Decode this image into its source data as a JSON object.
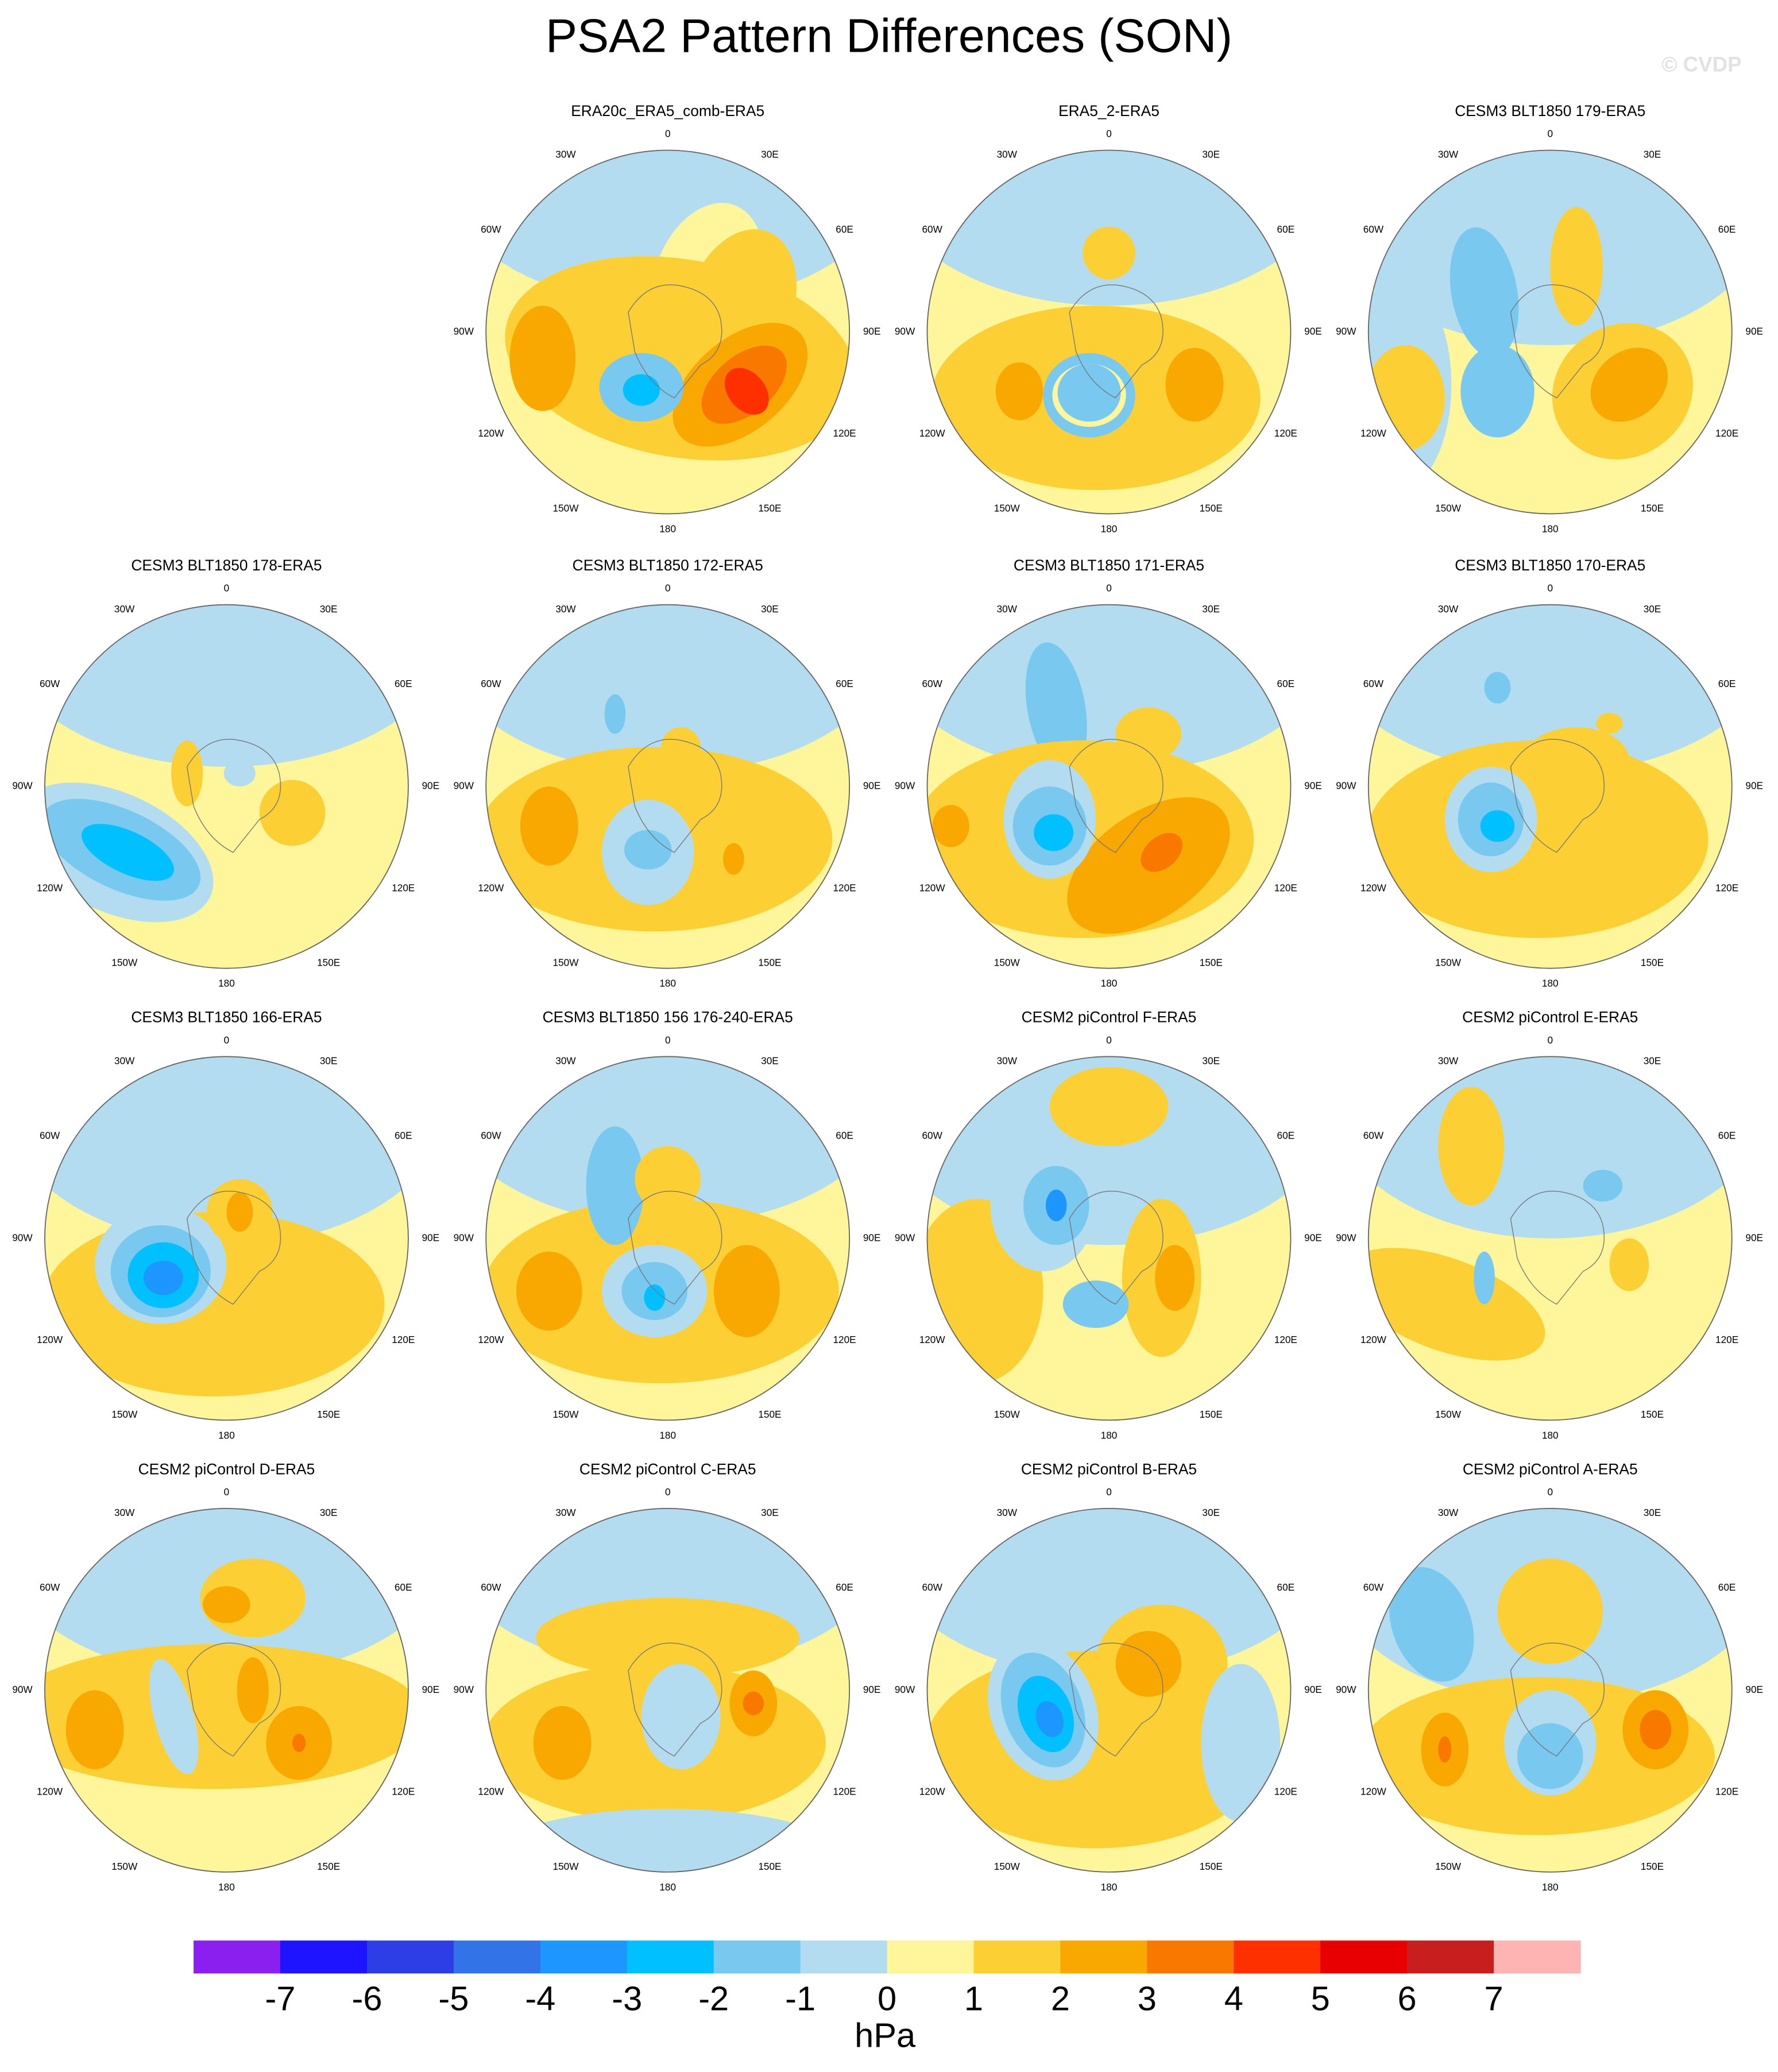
{
  "title": "PSA2 Pattern Differences (SON)",
  "watermark": "© CVDP",
  "panels": [
    {
      "title": "ERA20c_ERA5_comb-ERA5"
    },
    {
      "title": "ERA5_2-ERA5"
    },
    {
      "title": "CESM3 BLT1850 179-ERA5"
    },
    {
      "title": "CESM3 BLT1850 178-ERA5"
    },
    {
      "title": "CESM3 BLT1850 172-ERA5"
    },
    {
      "title": "CESM3 BLT1850 171-ERA5"
    },
    {
      "title": "CESM3 BLT1850 170-ERA5"
    },
    {
      "title": "CESM3 BLT1850 166-ERA5"
    },
    {
      "title": "CESM3 BLT1850 156 176-240-ERA5"
    },
    {
      "title": "CESM2 piControl F-ERA5"
    },
    {
      "title": "CESM2 piControl E-ERA5"
    },
    {
      "title": "CESM2 piControl D-ERA5"
    },
    {
      "title": "CESM2 piControl C-ERA5"
    },
    {
      "title": "CESM2 piControl B-ERA5"
    },
    {
      "title": "CESM2 piControl A-ERA5"
    }
  ],
  "longitude_labels": [
    "0",
    "30E",
    "60E",
    "90E",
    "120E",
    "150E",
    "180",
    "150W",
    "120W",
    "90W",
    "60W",
    "30W"
  ],
  "colorbar": {
    "levels": [
      -7,
      -6,
      -5,
      -4,
      -3,
      -2,
      -1,
      0,
      1,
      2,
      3,
      4,
      5,
      6,
      7
    ],
    "colors": [
      "#8a1ff0",
      "#1e14ff",
      "#2d3ee6",
      "#3273e8",
      "#1e96ff",
      "#00c0ff",
      "#78c8f0",
      "#b4dcf0",
      "#fff59a",
      "#fcd034",
      "#f8a800",
      "#f87800",
      "#ff3000",
      "#e80000",
      "#c81e1e",
      "#ffb4b4"
    ],
    "unit": "hPa"
  }
}
